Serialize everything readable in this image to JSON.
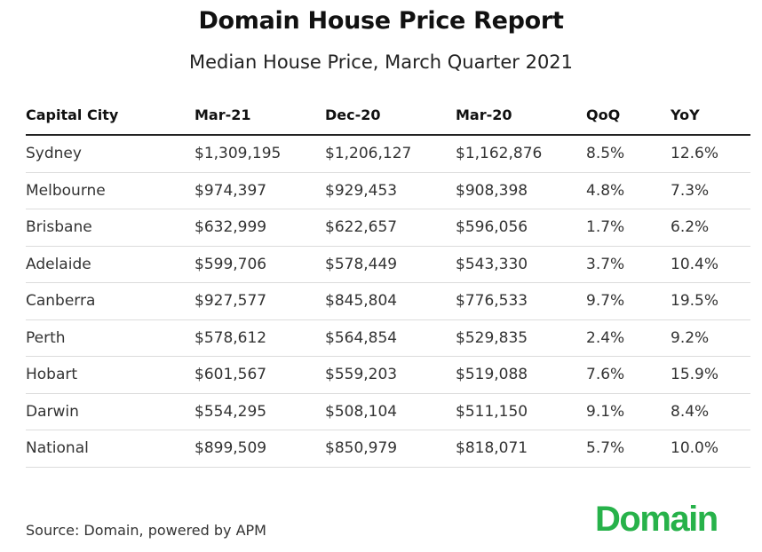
{
  "chart_data": {
    "type": "table",
    "title": "Domain House Price Report",
    "subtitle": "Median House Price, March Quarter 2021",
    "columns": [
      "Capital City",
      "Mar-21",
      "Dec-20",
      "Mar-20",
      "QoQ",
      "YoY"
    ],
    "rows": [
      [
        "Sydney",
        "$1,309,195",
        "$1,206,127",
        "$1,162,876",
        "8.5%",
        "12.6%"
      ],
      [
        "Melbourne",
        "$974,397",
        "$929,453",
        "$908,398",
        "4.8%",
        "7.3%"
      ],
      [
        "Brisbane",
        "$632,999",
        "$622,657",
        "$596,056",
        "1.7%",
        "6.2%"
      ],
      [
        "Adelaide",
        "$599,706",
        "$578,449",
        "$543,330",
        "3.7%",
        "10.4%"
      ],
      [
        "Canberra",
        "$927,577",
        "$845,804",
        "$776,533",
        "9.7%",
        "19.5%"
      ],
      [
        "Perth",
        "$578,612",
        "$564,854",
        "$529,835",
        "2.4%",
        "9.2%"
      ],
      [
        "Hobart",
        "$601,567",
        "$559,203",
        "$519,088",
        "7.6%",
        "15.9%"
      ],
      [
        "Darwin",
        "$554,295",
        "$508,104",
        "$511,150",
        "9.1%",
        "8.4%"
      ],
      [
        "National",
        "$899,509",
        "$850,979",
        "$818,071",
        "5.7%",
        "10.0%"
      ]
    ],
    "source": "Source: Domain, powered by APM"
  },
  "branding": {
    "logo_text": "Domain",
    "logo_color": "#27b24a"
  }
}
